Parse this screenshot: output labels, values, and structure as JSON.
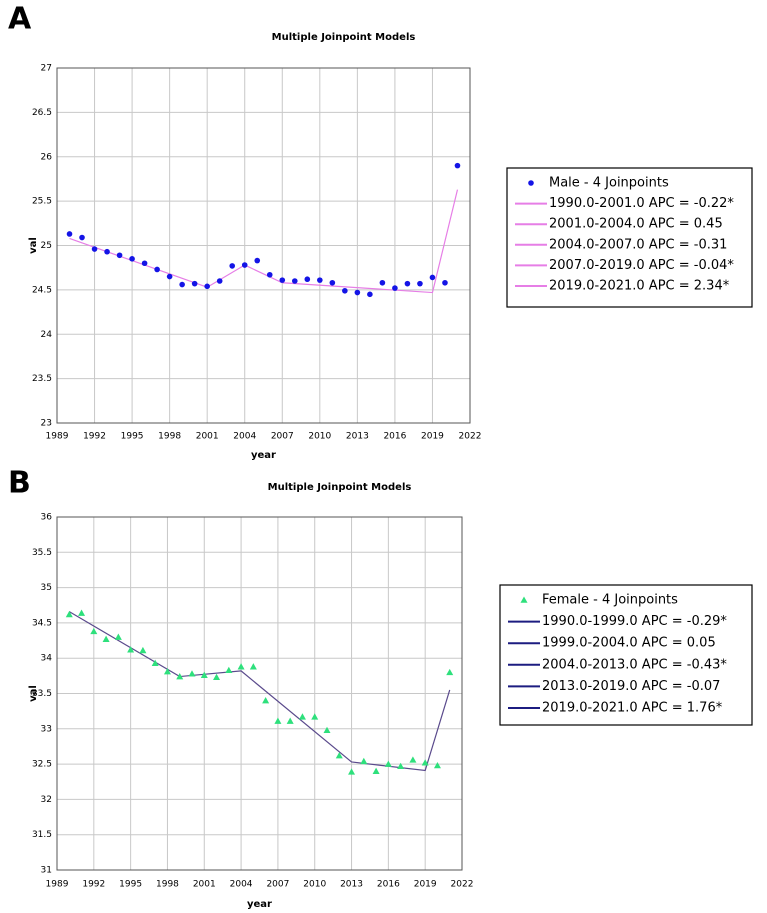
{
  "chart_data": [
    {
      "type": "scatter",
      "panel_label": "A",
      "title": "Multiple Joinpoint Models",
      "x_label": "year",
      "y_label": "val",
      "xlim": [
        1989,
        2022
      ],
      "xticks": [
        1989,
        1992,
        1995,
        1998,
        2001,
        2004,
        2007,
        2010,
        2013,
        2016,
        2019,
        2022
      ],
      "ylim": [
        23,
        27
      ],
      "yticks": [
        23,
        23.5,
        24,
        24.5,
        25,
        25.5,
        26,
        26.5,
        27
      ],
      "grid": true,
      "legend": "right",
      "marker": "circle",
      "series": [
        {
          "name": "Male - 4 Joinpoints",
          "color": "#1414e6",
          "x": [
            1990,
            1991,
            1992,
            1993,
            1994,
            1995,
            1996,
            1997,
            1998,
            1999,
            2000,
            2001,
            2002,
            2003,
            2004,
            2005,
            2006,
            2007,
            2008,
            2009,
            2010,
            2011,
            2012,
            2013,
            2014,
            2015,
            2016,
            2017,
            2018,
            2019,
            2020,
            2021
          ],
          "values": [
            25.13,
            25.09,
            24.96,
            24.93,
            24.89,
            24.85,
            24.8,
            24.73,
            24.65,
            24.56,
            24.57,
            24.54,
            24.6,
            24.77,
            24.78,
            24.83,
            24.67,
            24.61,
            24.6,
            24.62,
            24.61,
            24.58,
            24.49,
            24.47,
            24.45,
            24.58,
            24.52,
            24.57,
            24.57,
            24.64,
            24.58,
            25.9
          ]
        }
      ],
      "fit": {
        "color": "#e67ee6",
        "x": [
          1990,
          2001,
          2004,
          2007,
          2019,
          2021
        ],
        "values": [
          25.08,
          24.53,
          24.78,
          24.58,
          24.47,
          25.63
        ],
        "segment_labels": [
          "1990.0-2001.0 APC  =  -0.22*",
          "2001.0-2004.0 APC  =  0.45",
          "2004.0-2007.0 APC  =  -0.31",
          "2007.0-2019.0 APC  =  -0.04*",
          "2019.0-2021.0 APC  =  2.34*"
        ]
      }
    },
    {
      "type": "scatter",
      "panel_label": "B",
      "title": "Multiple Joinpoint Models",
      "x_label": "year",
      "y_label": "val",
      "xlim": [
        1989,
        2022
      ],
      "xticks": [
        1989,
        1992,
        1995,
        1998,
        2001,
        2004,
        2007,
        2010,
        2013,
        2016,
        2019,
        2022
      ],
      "ylim": [
        31,
        36
      ],
      "yticks": [
        31,
        31.5,
        32,
        32.5,
        33,
        33.5,
        34,
        34.5,
        35,
        35.5,
        36
      ],
      "grid": true,
      "legend": "right",
      "marker": "triangle",
      "series": [
        {
          "name": "Female - 4 Joinpoints",
          "color": "#2ee07c",
          "x": [
            1990,
            1991,
            1992,
            1993,
            1994,
            1995,
            1996,
            1997,
            1998,
            1999,
            2000,
            2001,
            2002,
            2003,
            2004,
            2005,
            2006,
            2007,
            2008,
            2009,
            2010,
            2011,
            2012,
            2013,
            2014,
            2015,
            2016,
            2017,
            2018,
            2019,
            2020,
            2021
          ],
          "values": [
            34.62,
            34.64,
            34.38,
            34.27,
            34.3,
            34.12,
            34.11,
            33.93,
            33.81,
            33.74,
            33.78,
            33.76,
            33.73,
            33.83,
            33.88,
            33.88,
            33.4,
            33.11,
            33.11,
            33.17,
            33.17,
            32.98,
            32.62,
            32.39,
            32.54,
            32.4,
            32.5,
            32.47,
            32.56,
            32.52,
            32.48,
            33.8
          ]
        }
      ],
      "fit": {
        "color": "#5a4a8c",
        "legend_color": "#1c1c80",
        "x": [
          1990,
          1999,
          2004,
          2013,
          2019,
          2021
        ],
        "values": [
          34.66,
          33.74,
          33.82,
          32.53,
          32.41,
          33.55
        ],
        "segment_labels": [
          "1990.0-1999.0 APC  =  -0.29*",
          "1999.0-2004.0 APC  =  0.05",
          "2004.0-2013.0 APC  =  -0.43*",
          "2013.0-2019.0 APC  =  -0.07",
          "2019.0-2021.0 APC  =  1.76*"
        ]
      }
    }
  ]
}
